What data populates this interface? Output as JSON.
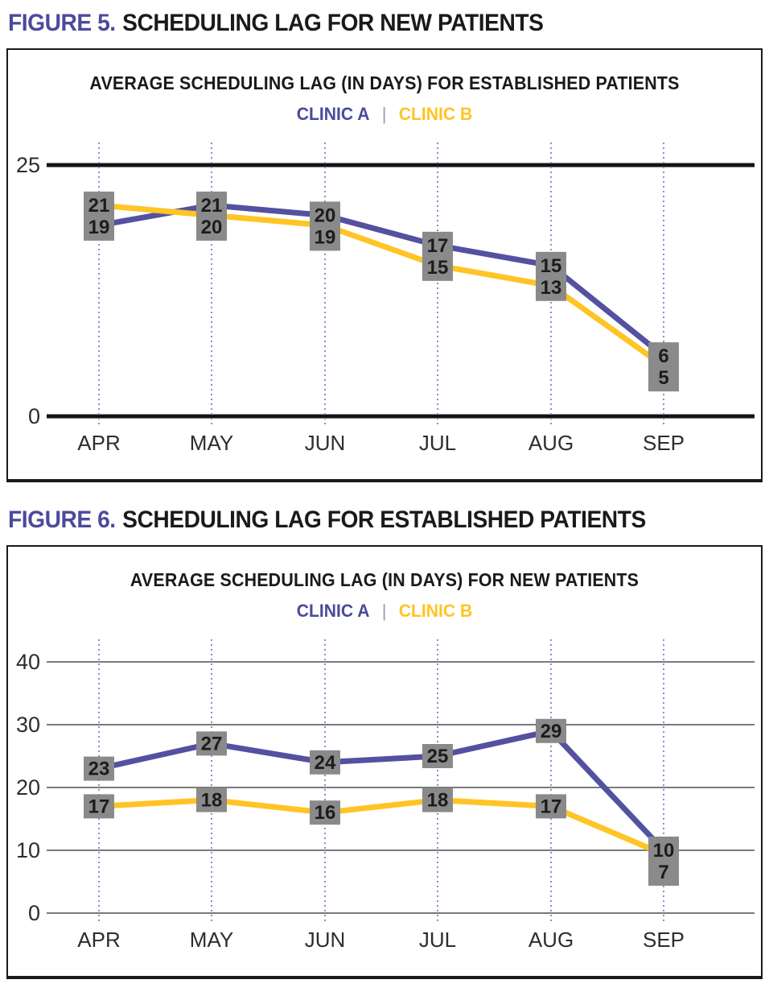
{
  "colors": {
    "clinic_a": "#5451A0",
    "clinic_b": "#FFC425",
    "heading_accent": "#4B4A9C",
    "heading_text": "#1A1A1A",
    "label_box": "#8A8A8A",
    "label_text": "#1C1C1C",
    "grid_gray": "#7A7A7A",
    "axis_black": "#141414",
    "dotted_line": "#8F8DC7",
    "tick_text": "#2D2D2D",
    "legend_separator": "#9A9A9A"
  },
  "figures": [
    {
      "heading": {
        "label": "FIGURE 5.",
        "title": "SCHEDULING LAG FOR NEW PATIENTS"
      }
    },
    {
      "heading": {
        "label": "FIGURE 6.",
        "title": "SCHEDULING LAG FOR ESTABLISHED PATIENTS"
      }
    }
  ],
  "chart_data": [
    {
      "type": "line",
      "title": "AVERAGE SCHEDULING LAG (IN DAYS) FOR ESTABLISHED PATIENTS",
      "legend": {
        "a": "CLINIC A",
        "separator": "|",
        "b": "CLINIC B"
      },
      "legend_position": "top-center",
      "categories": [
        "APR",
        "MAY",
        "JUN",
        "JUL",
        "AUG",
        "SEP"
      ],
      "series": [
        {
          "name": "CLINIC A",
          "color": "#5451A0",
          "values": [
            19,
            21,
            20,
            17,
            15,
            6
          ]
        },
        {
          "name": "CLINIC B",
          "color": "#FFC425",
          "values": [
            21,
            20,
            19,
            15,
            13,
            5
          ]
        }
      ],
      "xlabel": "",
      "ylabel": "",
      "ylim": [
        0,
        25
      ],
      "yticks": [
        25,
        0
      ],
      "grid": "thick-black-axis-lines-only",
      "vertical_month_lines": "dotted",
      "label_mode": "combined",
      "merge_last_labels": false,
      "converge_last_point_visually": false
    },
    {
      "type": "line",
      "title": "AVERAGE SCHEDULING LAG (IN DAYS) FOR NEW PATIENTS",
      "legend": {
        "a": "CLINIC A",
        "separator": "|",
        "b": "CLINIC B"
      },
      "legend_position": "top-center",
      "categories": [
        "APR",
        "MAY",
        "JUN",
        "JUL",
        "AUG",
        "SEP"
      ],
      "series": [
        {
          "name": "CLINIC A",
          "color": "#5451A0",
          "values": [
            23,
            27,
            24,
            25,
            29,
            10
          ]
        },
        {
          "name": "CLINIC B",
          "color": "#FFC425",
          "values": [
            17,
            18,
            16,
            18,
            17,
            7
          ]
        }
      ],
      "xlabel": "",
      "ylabel": "",
      "ylim": [
        0,
        40
      ],
      "yticks": [
        40,
        30,
        20,
        10,
        0
      ],
      "grid": "horizontal-gray",
      "vertical_month_lines": "dotted",
      "label_mode": "separate",
      "merge_last_labels": true,
      "converge_last_point_visually": true
    }
  ]
}
